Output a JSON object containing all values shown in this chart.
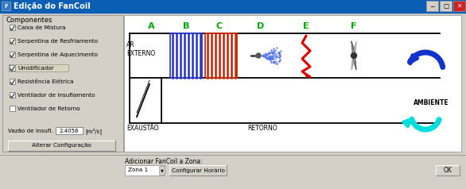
{
  "title": "Edição do FanCoil",
  "titlebar_color": "#0a5fb5",
  "bg_color": "#d4d0c8",
  "white_color": "#ffffff",
  "components_label": "Componentes",
  "checkboxes": [
    {
      "label": "Caixa de Mistura",
      "checked": true
    },
    {
      "label": "Serpentina de Resfriamento",
      "checked": true
    },
    {
      "label": "Serpentina de Aquecimento",
      "checked": true
    },
    {
      "label": "Umidificador",
      "checked": true,
      "highlighted": true
    },
    {
      "label": "Resistência Elétrica",
      "checked": true
    },
    {
      "label": "Ventilador de Insuflamento",
      "checked": true
    },
    {
      "label": "Ventilador de Retorno",
      "checked": false
    }
  ],
  "vazao_label": "Vazão de insufl.",
  "vazao_value": "2.4058",
  "vazao_unit": "[m³/s]",
  "alterar_btn": "Alterar Configuração",
  "adicionar_label": "Adicionar FanCoil a Zona:",
  "zona_value": "Zona 1",
  "configurar_btn": "Configurar Horário",
  "ok_btn": "OK",
  "diagram_labels": [
    "A",
    "B",
    "C",
    "D",
    "E",
    "F"
  ],
  "ar_externo": "AR\nEXTERNO",
  "ambiente": "AMBIENTE",
  "exaustao": "EXAUSTÃO",
  "retorno": "RETORNO",
  "green_label": "#00aa00",
  "blue_coil": "#2233cc",
  "red_coil": "#cc2200",
  "red_zigzag": "#dd0000",
  "blue_arrow": "#1133cc",
  "cyan_arrow": "#00dddd",
  "spray_color": "#5577ee"
}
